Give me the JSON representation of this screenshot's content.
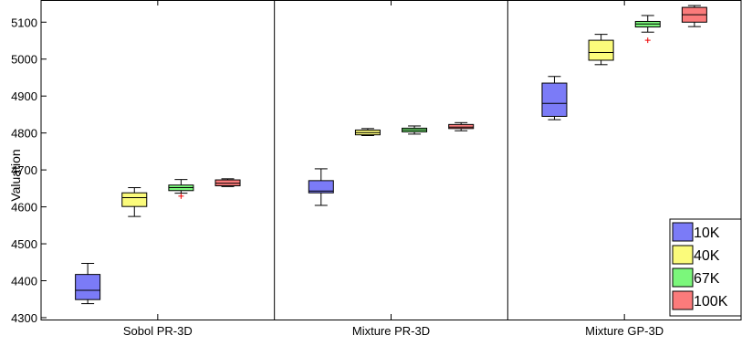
{
  "chart_data": {
    "type": "box",
    "title": "",
    "xlabel": "",
    "ylabel": "Valuation",
    "ylim": [
      4295,
      5160
    ],
    "yticks": [
      4300,
      4400,
      4500,
      4600,
      4700,
      4800,
      4900,
      5000,
      5100
    ],
    "grid": false,
    "legend_position": "bottom-right",
    "groups": [
      "Sobol PR-3D",
      "Mixture PR-3D",
      "Mixture GP-3D"
    ],
    "series": [
      {
        "name": "10K",
        "color": "#7b7bf7",
        "boxes": [
          {
            "whisker_low": 4338,
            "q1": 4349,
            "median": 4374,
            "q3": 4417,
            "whisker_high": 4447,
            "outliers": []
          },
          {
            "whisker_low": 4604,
            "q1": 4638,
            "median": 4643,
            "q3": 4671,
            "whisker_high": 4703,
            "outliers": []
          },
          {
            "whisker_low": 4836,
            "q1": 4845,
            "median": 4880,
            "q3": 4935,
            "whisker_high": 4953,
            "outliers": []
          }
        ]
      },
      {
        "name": "40K",
        "color": "#fbfb7b",
        "boxes": [
          {
            "whisker_low": 4574,
            "q1": 4601,
            "median": 4625,
            "q3": 4638,
            "whisker_high": 4652,
            "outliers": []
          },
          {
            "whisker_low": 4793,
            "q1": 4795,
            "median": 4801,
            "q3": 4808,
            "whisker_high": 4812,
            "outliers": []
          },
          {
            "whisker_low": 4985,
            "q1": 4997,
            "median": 5018,
            "q3": 5051,
            "whisker_high": 5067,
            "outliers": []
          }
        ]
      },
      {
        "name": "67K",
        "color": "#7bf77b",
        "boxes": [
          {
            "whisker_low": 4637,
            "q1": 4644,
            "median": 4652,
            "q3": 4659,
            "whisker_high": 4674,
            "outliers": [
              4629
            ]
          },
          {
            "whisker_low": 4797,
            "q1": 4803,
            "median": 4808,
            "q3": 4813,
            "whisker_high": 4819,
            "outliers": []
          },
          {
            "whisker_low": 5073,
            "q1": 5087,
            "median": 5095,
            "q3": 5102,
            "whisker_high": 5118,
            "outliers": [
              5051
            ]
          }
        ]
      },
      {
        "name": "100K",
        "color": "#fb7b7b",
        "boxes": [
          {
            "whisker_low": 4655,
            "q1": 4657,
            "median": 4664,
            "q3": 4673,
            "whisker_high": 4676,
            "outliers": []
          },
          {
            "whisker_low": 4806,
            "q1": 4812,
            "median": 4816,
            "q3": 4823,
            "whisker_high": 4828,
            "outliers": []
          },
          {
            "whisker_low": 5088,
            "q1": 5100,
            "median": 5120,
            "q3": 5140,
            "whisker_high": 5145,
            "outliers": []
          }
        ]
      }
    ]
  }
}
